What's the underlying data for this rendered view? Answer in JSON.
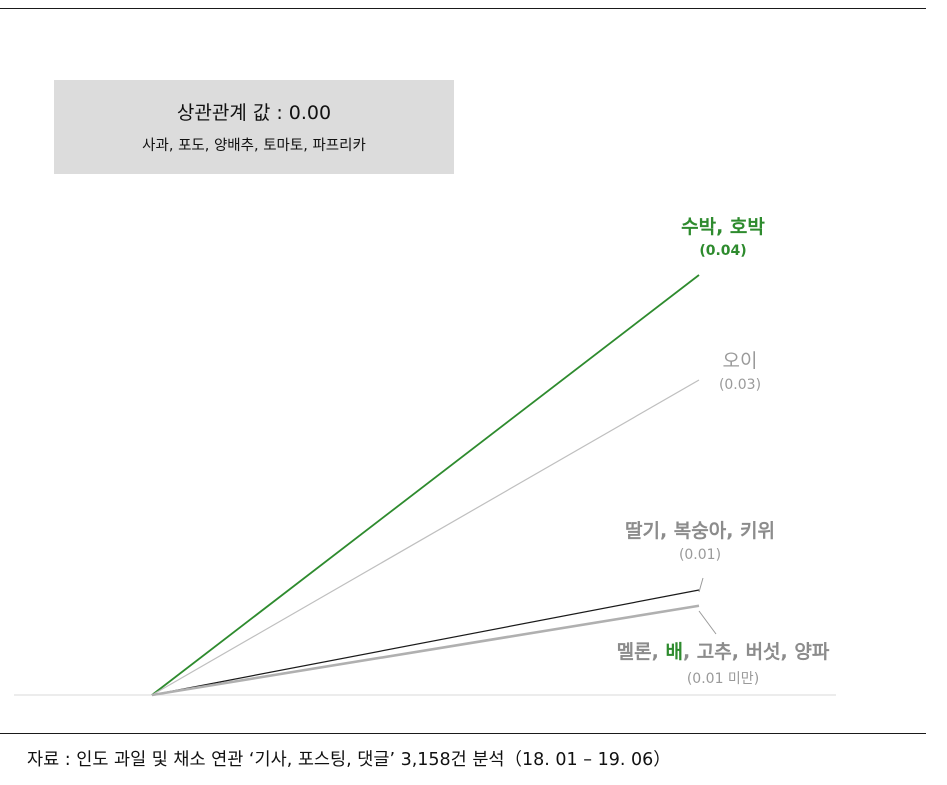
{
  "chart_data": {
    "type": "line",
    "title": "",
    "xlabel": "",
    "ylabel": "",
    "ylim": [
      0,
      0.045
    ],
    "baseline": {
      "label_title": "상관관계 값 : 0.00",
      "items": "사과, 포도, 양배추, 토마토, 파프리카",
      "value": 0.0
    },
    "series": [
      {
        "key": "watermelon",
        "name": "수박, 호박",
        "value_label": "(0.04)",
        "value": 0.04,
        "color": "#2e8b2e"
      },
      {
        "key": "cucumber",
        "name": "오이",
        "value_label": "(0.03)",
        "value": 0.03,
        "color": "#bfbfbf"
      },
      {
        "key": "strawberry",
        "name": "딸기, 복숭아, 키위",
        "value_label": "(0.01)",
        "value": 0.01,
        "color": "#1a1a1a"
      },
      {
        "key": "melon",
        "name_parts": [
          "멜론, ",
          "배",
          ", 고추, 버섯, 양파"
        ],
        "value_label": "(0.01 미만)",
        "value": 0.0085,
        "color": "#b0b0b0"
      }
    ]
  },
  "source": "자료 : 인도 과일 및 채소 연관 ‘기사, 포스팅, 댓글’ 3,158건 분석（18. 01 – 19. 06）"
}
